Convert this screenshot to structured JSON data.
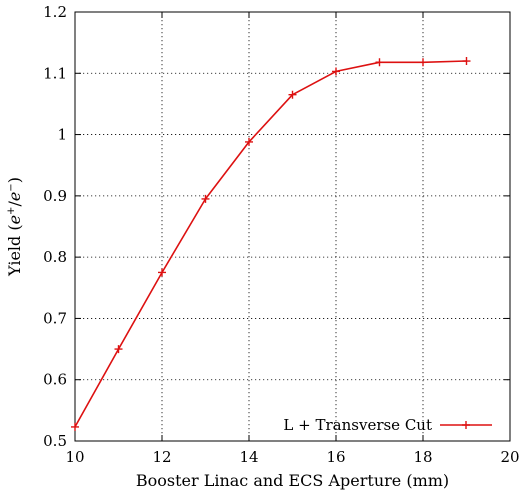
{
  "chart_data": {
    "type": "line",
    "title": "",
    "xlabel": "Booster Linac and ECS Aperture (mm)",
    "ylabel_main": "Yield (",
    "ylabel_num": "e",
    "ylabel_num_sup": "+",
    "ylabel_slash": "/",
    "ylabel_den": "e",
    "ylabel_den_sup": "−",
    "ylabel_close": ")",
    "xlim": [
      10,
      20
    ],
    "ylim": [
      0.5,
      1.2
    ],
    "xticks": [
      10,
      12,
      14,
      16,
      18,
      20
    ],
    "yticks": [
      0.5,
      0.6,
      0.7,
      0.8,
      0.9,
      1,
      1.1,
      1.2
    ],
    "xtick_labels": [
      "10",
      "12",
      "14",
      "16",
      "18",
      "20"
    ],
    "ytick_labels": [
      "0.5",
      "0.6",
      "0.7",
      "0.8",
      "0.9",
      "1",
      "1.1",
      "1.2"
    ],
    "grid": true,
    "legend_position": "bottom-right",
    "series": [
      {
        "name": "L + Transverse Cut",
        "color": "#dd1111",
        "marker": "plus",
        "x": [
          10,
          11,
          12,
          13,
          14,
          15,
          16,
          17,
          18,
          19
        ],
        "y": [
          0.523,
          0.65,
          0.775,
          0.895,
          0.988,
          1.065,
          1.103,
          1.118,
          1.118,
          1.12
        ]
      }
    ]
  }
}
